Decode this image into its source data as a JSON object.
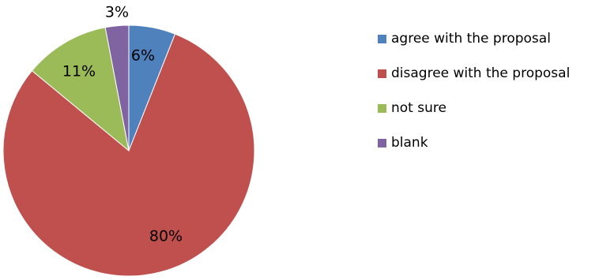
{
  "chart_data": {
    "type": "pie",
    "title": "",
    "categories": [
      "agree with the proposal",
      "disagree with the proposal",
      "not sure",
      "blank"
    ],
    "values": [
      6,
      80,
      11,
      3
    ],
    "labels": [
      "6%",
      "80%",
      "11%",
      "3%"
    ],
    "colors": [
      "#4f81bd",
      "#c0504d",
      "#9bbb59",
      "#8064a2"
    ],
    "start_angle_deg": 0,
    "direction": "clockwise",
    "legend_position": "right"
  }
}
